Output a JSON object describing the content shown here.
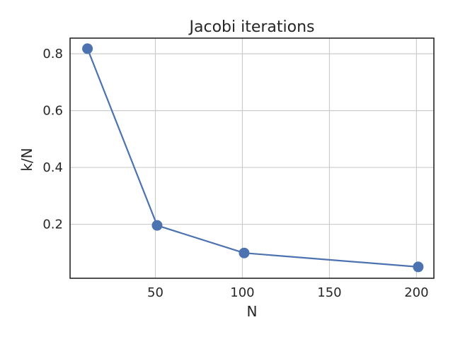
{
  "chart_data": {
    "type": "line",
    "title": "Jacobi iterations",
    "xlabel": "N",
    "ylabel": "k/N",
    "xlim": [
      1,
      210
    ],
    "ylim": [
      0.01,
      0.855
    ],
    "xticks": [
      50,
      100,
      150,
      200
    ],
    "yticks": [
      0.2,
      0.4,
      0.6,
      0.8
    ],
    "xtick_labels": [
      "50",
      "100",
      "150",
      "200"
    ],
    "ytick_labels": [
      "0.2",
      "0.4",
      "0.6",
      "0.8"
    ],
    "grid": true,
    "series": [
      {
        "x": [
          11,
          51,
          101,
          201
        ],
        "y": [
          0.818,
          0.196,
          0.099,
          0.05
        ],
        "color": "#4c72b0",
        "marker": "circle"
      }
    ]
  }
}
